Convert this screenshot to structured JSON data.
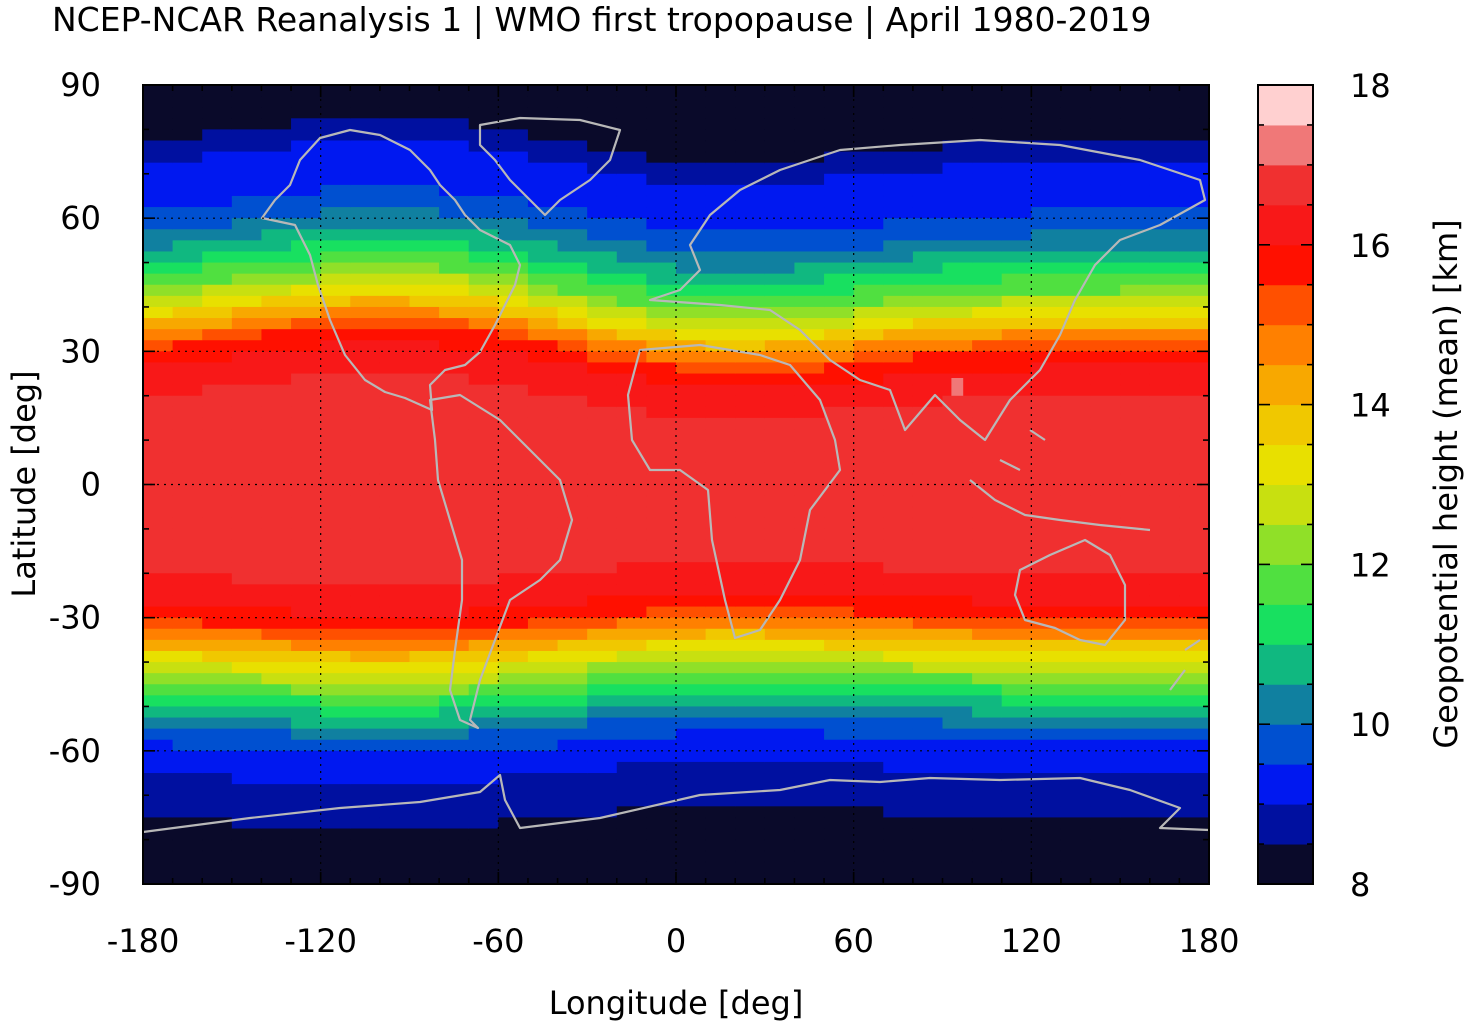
{
  "title": "NCEP-NCAR Reanalysis 1 | WMO first tropopause | April 1980-2019",
  "chart_data": {
    "type": "heatmap",
    "xlabel": "Longitude [deg]",
    "ylabel": "Latitude [deg]",
    "xlim": [
      -180,
      180
    ],
    "ylim": [
      -90,
      90
    ],
    "x_ticks": [
      -180,
      -120,
      -60,
      0,
      60,
      120,
      180
    ],
    "y_ticks": [
      90,
      60,
      30,
      0,
      -30,
      -60,
      -90
    ],
    "x_tick_labels": [
      "-180",
      "-120",
      "-60",
      "0",
      "60",
      "120",
      "180"
    ],
    "y_tick_labels": [
      "90",
      "60",
      "30",
      "0",
      "-30",
      "-60",
      "-90"
    ],
    "grid": true,
    "overlay": "coastlines",
    "colorbar": {
      "label": "Geopotential height (mean) [km]",
      "range": [
        8,
        18
      ],
      "ticks": [
        8,
        10,
        12,
        14,
        16,
        18
      ],
      "tick_labels": [
        "8",
        "10",
        "12",
        "14",
        "16",
        "18"
      ],
      "step_km": 0.5,
      "colors": [
        "#0a0a2a",
        "#0010a0",
        "#0018f0",
        "#0050d0",
        "#1080a0",
        "#10b880",
        "#18e060",
        "#50e040",
        "#90e028",
        "#c8e010",
        "#e8e000",
        "#f0c800",
        "#f8a800",
        "#ff8000",
        "#ff5000",
        "#ff1000",
        "#f81818",
        "#f03030",
        "#f07878",
        "#ffd0d0"
      ]
    },
    "zonal_mean_profile_km": {
      "latitude": [
        90,
        80,
        75,
        70,
        65,
        60,
        55,
        50,
        45,
        40,
        35,
        30,
        25,
        15,
        0,
        -15,
        -25,
        -30,
        -35,
        -40,
        -45,
        -50,
        -55,
        -60,
        -65,
        -70,
        -75,
        -80,
        -90
      ],
      "height": [
        8.2,
        8.2,
        8.8,
        9.2,
        9.3,
        9.6,
        10.2,
        11.0,
        11.8,
        12.9,
        14.3,
        15.6,
        16.2,
        16.8,
        16.9,
        16.8,
        16.2,
        15.6,
        14.3,
        13.0,
        11.8,
        10.8,
        9.9,
        9.3,
        9.0,
        8.7,
        8.5,
        8.3,
        8.2
      ]
    }
  }
}
